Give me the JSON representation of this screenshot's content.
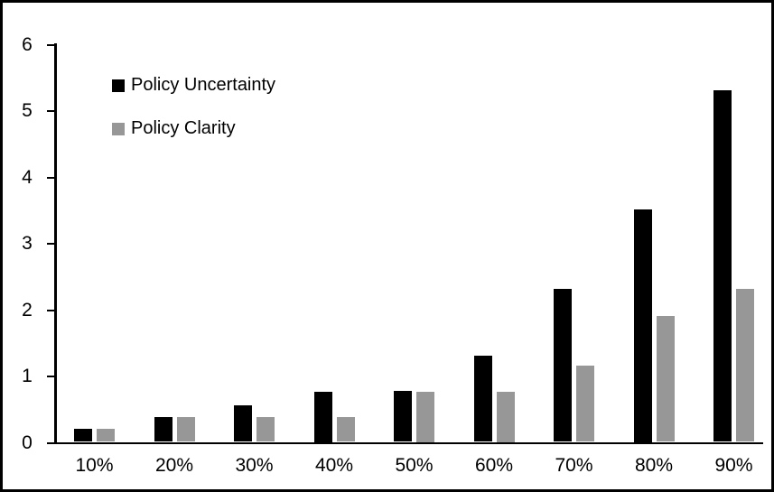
{
  "figure": {
    "background": "#ffffff",
    "border_color": "#000000",
    "axis_color": "#000000"
  },
  "chart_data": {
    "type": "bar",
    "title": "",
    "xlabel": "",
    "ylabel": "",
    "categories": [
      "10%",
      "20%",
      "30%",
      "40%",
      "50%",
      "60%",
      "70%",
      "80%",
      "90%"
    ],
    "series": [
      {
        "name": "Policy Uncertainty",
        "color": "#000000",
        "values": [
          0.2,
          0.37,
          0.55,
          0.75,
          0.77,
          1.3,
          2.3,
          3.5,
          5.3
        ]
      },
      {
        "name": "Policy Clarity",
        "color": "#979797",
        "values": [
          0.2,
          0.37,
          0.37,
          0.37,
          0.75,
          0.75,
          1.15,
          1.9,
          2.3
        ]
      }
    ],
    "ylim": [
      0,
      6
    ],
    "yticks": [
      0,
      1,
      2,
      3,
      4,
      5,
      6
    ],
    "grid": false,
    "legend_position": "upper-left-inside"
  }
}
